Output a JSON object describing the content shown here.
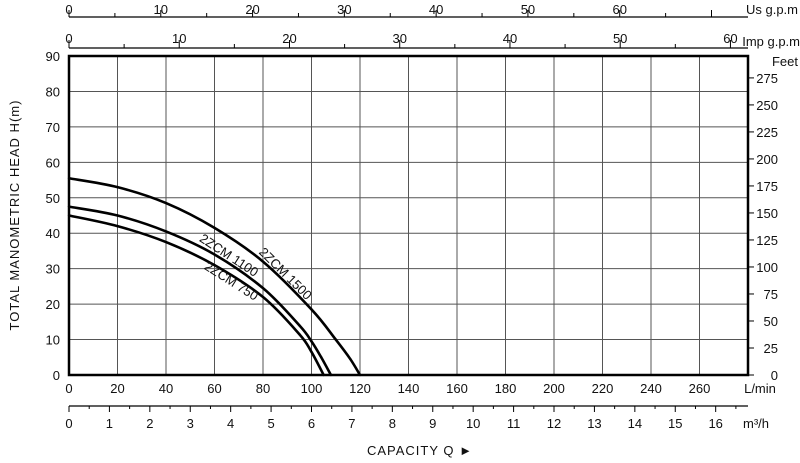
{
  "chart_data": {
    "type": "line",
    "title": "",
    "xlabel": "CAPACITY Q ►",
    "ylabel": "TOTAL MANOMETRIC HEAD H(m)",
    "xlim": [
      0,
      280
    ],
    "ylim": [
      0,
      90
    ],
    "grid": true,
    "x_units": "L/min",
    "y_units": "m",
    "x_ticks": [
      "0",
      "20",
      "40",
      "60",
      "80",
      "100",
      "120",
      "140",
      "160",
      "180",
      "200",
      "220",
      "240",
      "260"
    ],
    "y_ticks": [
      "0",
      "10",
      "20",
      "30",
      "40",
      "50",
      "60",
      "70",
      "80",
      "90"
    ],
    "secondary_axes": {
      "top_usgpm": {
        "label": "Us g.p.m",
        "ticks": [
          "0",
          "10",
          "20",
          "30",
          "40",
          "50",
          "60"
        ],
        "per_unit": 3.785
      },
      "top_impgpm": {
        "label": "Imp g.p.m",
        "ticks": [
          "0",
          "10",
          "20",
          "30",
          "40",
          "50",
          "60"
        ],
        "per_unit": 4.546
      },
      "bottom_m3h": {
        "label": "m³/h",
        "ticks": [
          "0",
          "1",
          "2",
          "3",
          "4",
          "5",
          "6",
          "7",
          "8",
          "9",
          "10",
          "11",
          "12",
          "13",
          "14",
          "15",
          "16"
        ],
        "per_unit": 16.667
      },
      "right_feet": {
        "label": "Feet",
        "ticks": [
          "0",
          "25",
          "50",
          "75",
          "100",
          "125",
          "150",
          "175",
          "200",
          "225",
          "250",
          "275"
        ],
        "per_unit": 0.3048
      }
    },
    "series": [
      {
        "name": "2ZCM 1500",
        "x": [
          0,
          20,
          40,
          60,
          80,
          100,
          110,
          116,
          120
        ],
        "y": [
          55.5,
          53,
          48.5,
          41.5,
          32,
          18.5,
          10,
          4.5,
          0
        ]
      },
      {
        "name": "2ZCM 1100",
        "x": [
          0,
          20,
          40,
          60,
          80,
          95,
          100,
          104,
          108
        ],
        "y": [
          47.5,
          45,
          40.5,
          34,
          24.5,
          14,
          9.5,
          5,
          0
        ]
      },
      {
        "name": "2ZCM 750",
        "x": [
          0,
          20,
          40,
          60,
          80,
          95,
          100,
          105
        ],
        "y": [
          45,
          42,
          37.5,
          31,
          22,
          11.5,
          6.5,
          0
        ]
      }
    ]
  }
}
